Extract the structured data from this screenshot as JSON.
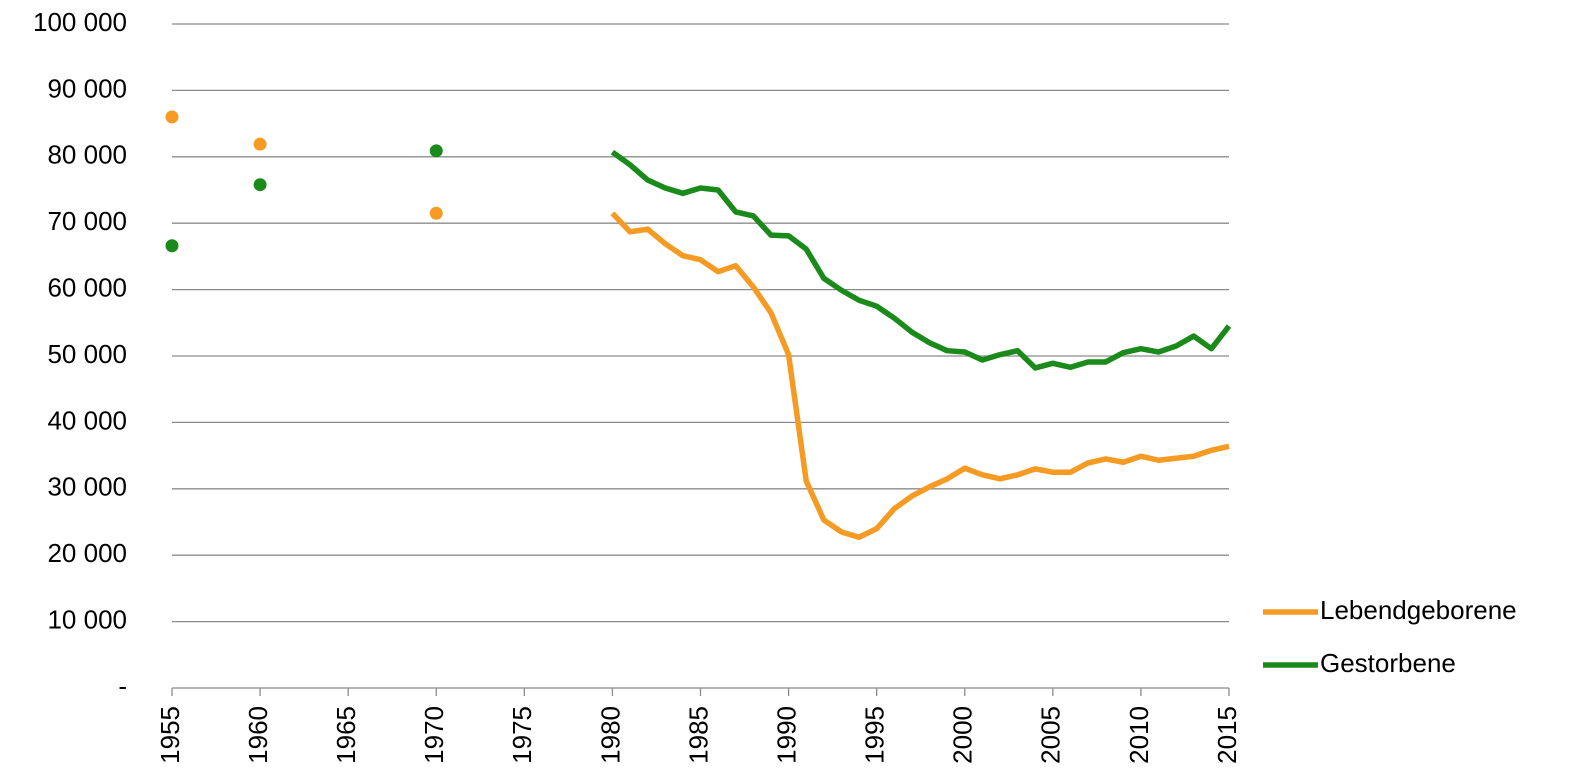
{
  "chart_data": {
    "type": "line",
    "x": [
      1955,
      1956,
      1957,
      1958,
      1959,
      1960,
      1961,
      1962,
      1963,
      1964,
      1965,
      1966,
      1967,
      1968,
      1969,
      1970,
      1971,
      1972,
      1973,
      1974,
      1975,
      1976,
      1977,
      1978,
      1979,
      1980,
      1981,
      1982,
      1983,
      1984,
      1985,
      1986,
      1987,
      1988,
      1989,
      1990,
      1991,
      1992,
      1993,
      1994,
      1995,
      1996,
      1997,
      1998,
      1999,
      2000,
      2001,
      2002,
      2003,
      2004,
      2005,
      2006,
      2007,
      2008,
      2009,
      2010,
      2011,
      2012,
      2013,
      2014,
      2015
    ],
    "series": [
      {
        "name": "Lebendgeborene",
        "color": "#f59a23",
        "values": [
          86000,
          null,
          null,
          null,
          null,
          81900,
          null,
          null,
          null,
          null,
          null,
          null,
          null,
          null,
          null,
          71500,
          null,
          null,
          null,
          null,
          null,
          null,
          null,
          null,
          null,
          71500,
          68700,
          69100,
          66900,
          65100,
          64500,
          62700,
          63600,
          60400,
          56500,
          50200,
          31200,
          25300,
          23500,
          22700,
          24000,
          27000,
          28900,
          30300,
          31500,
          33100,
          32100,
          31500,
          32100,
          33000,
          32500,
          32500,
          33900,
          34500,
          34000,
          34900,
          34300,
          34600,
          34900,
          35800,
          36400
        ]
      },
      {
        "name": "Gestorbene",
        "color": "#1a8a1a",
        "values": [
          66600,
          null,
          null,
          null,
          null,
          75800,
          null,
          null,
          null,
          null,
          null,
          null,
          null,
          null,
          null,
          80900,
          null,
          null,
          null,
          null,
          null,
          null,
          null,
          null,
          null,
          80700,
          78800,
          76500,
          75300,
          74500,
          75300,
          75000,
          71700,
          71100,
          68200,
          68100,
          66100,
          61700,
          59900,
          58400,
          57500,
          55700,
          53600,
          52000,
          50800,
          50600,
          49400,
          50200,
          50800,
          48200,
          48900,
          48300,
          49100,
          49100,
          50500,
          51100,
          50600,
          51500,
          53000,
          51100,
          54500
        ]
      }
    ],
    "xlim": [
      1955,
      2015
    ],
    "xticks": [
      1955,
      1960,
      1965,
      1970,
      1975,
      1980,
      1985,
      1990,
      1995,
      2000,
      2005,
      2010,
      2015
    ],
    "ylim": [
      0,
      100000
    ],
    "yticks": [
      {
        "value": 0,
        "label": "-"
      },
      {
        "value": 10000,
        "label": "10 000"
      },
      {
        "value": 20000,
        "label": "20 000"
      },
      {
        "value": 30000,
        "label": "30 000"
      },
      {
        "value": 40000,
        "label": "40 000"
      },
      {
        "value": 50000,
        "label": "50 000"
      },
      {
        "value": 60000,
        "label": "60 000"
      },
      {
        "value": 70000,
        "label": "70 000"
      },
      {
        "value": 80000,
        "label": "80 000"
      },
      {
        "value": 90000,
        "label": "90 000"
      },
      {
        "value": 100000,
        "label": "100 000"
      }
    ],
    "grid": true,
    "legend": "right"
  }
}
